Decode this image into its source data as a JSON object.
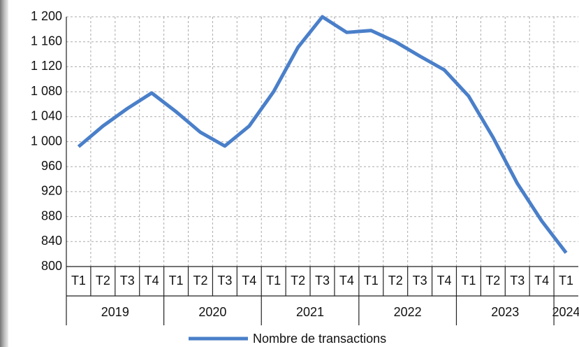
{
  "chart_data": {
    "type": "line",
    "categories": [
      "T1",
      "T2",
      "T3",
      "T4",
      "T1",
      "T2",
      "T3",
      "T4",
      "T1",
      "T2",
      "T3",
      "T4",
      "T1",
      "T2",
      "T3",
      "T4",
      "T1",
      "T2",
      "T3",
      "T4",
      "T1"
    ],
    "category_groups": [
      {
        "label": "2019",
        "count": 4
      },
      {
        "label": "2020",
        "count": 4
      },
      {
        "label": "2021",
        "count": 4
      },
      {
        "label": "2022",
        "count": 4
      },
      {
        "label": "2023",
        "count": 4
      },
      {
        "label": "2024",
        "count": 1
      }
    ],
    "series": [
      {
        "name": "Nombre de transactions",
        "color": "#4a7fc9",
        "values": [
          992,
          1025,
          1053,
          1078,
          1048,
          1015,
          993,
          1025,
          1080,
          1151,
          1200,
          1175,
          1178,
          1160,
          1137,
          1115,
          1073,
          1007,
          933,
          873,
          822
        ]
      }
    ],
    "ylim": [
      800,
      1200
    ],
    "yticks": [
      800,
      840,
      880,
      920,
      960,
      {
        "value": 1000,
        "label": "1 000"
      },
      {
        "value": 1040,
        "label": "1 040"
      },
      {
        "value": 1080,
        "label": "1 080"
      },
      {
        "value": 1120,
        "label": "1 120"
      },
      {
        "value": 1160,
        "label": "1 160"
      },
      {
        "value": 1200,
        "label": "1 200"
      }
    ],
    "grid": true
  }
}
